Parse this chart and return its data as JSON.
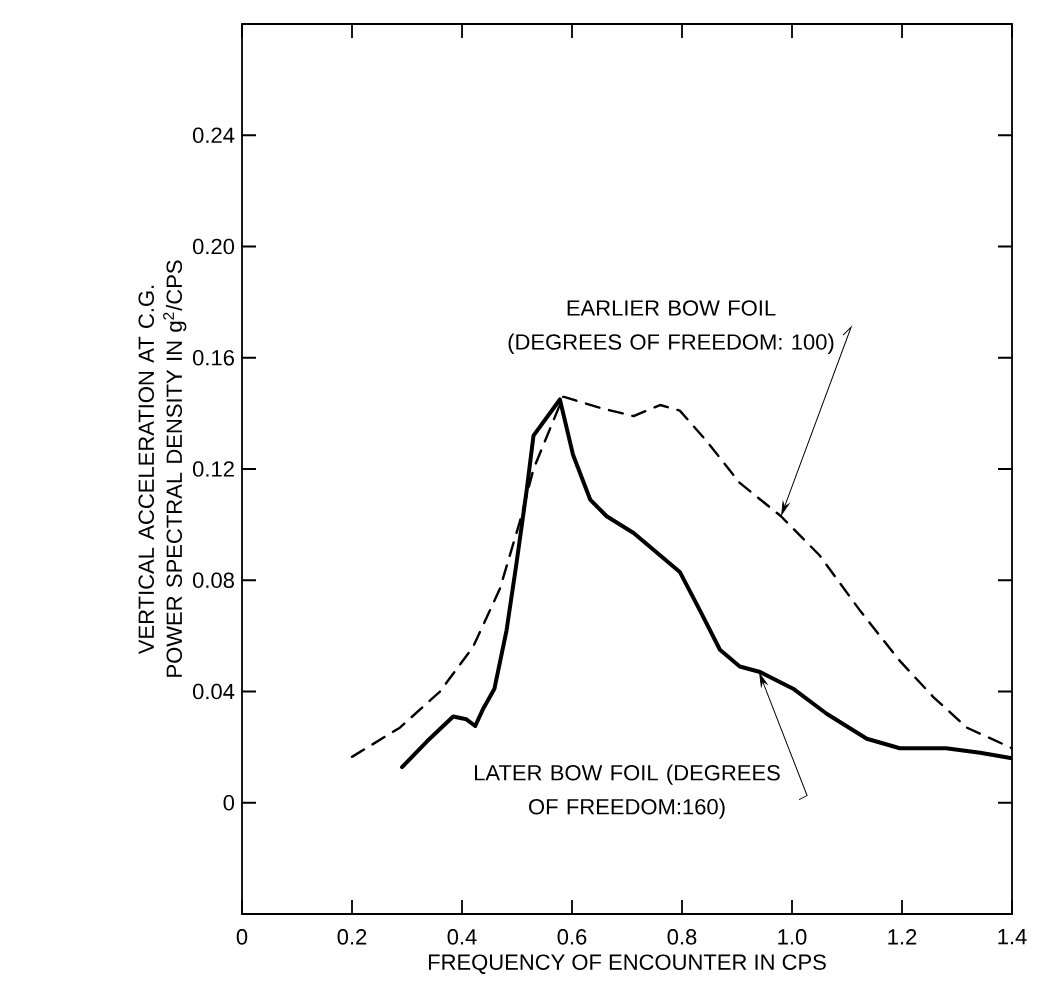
{
  "chart_data": {
    "type": "line",
    "xlabel": "FREQUENCY OF ENCOUNTER IN CPS",
    "ylabel": "VERTICAL ACCELERATION AT C.G. POWER SPECTRAL DENSITY IN g$^{2}$/CPS",
    "xlim": [
      0,
      1.4
    ],
    "ylim": [
      -0.04,
      0.28
    ],
    "xticks": [
      0,
      0.2,
      0.4,
      0.6,
      0.8,
      {
        "value": 1.0,
        "label": "1.0"
      },
      1.2,
      1.4
    ],
    "yticks": [
      0,
      0.04,
      0.08,
      0.12,
      0.16,
      {
        "value": 0.2,
        "label": "0.20"
      },
      0.24
    ],
    "grid": false,
    "marker": "none",
    "series": [
      {
        "color": "#000000",
        "line_style": "dashed",
        "x": [
          0.2,
          0.287,
          0.36,
          0.42,
          0.469,
          0.505,
          0.53,
          0.584,
          0.651,
          0.712,
          0.76,
          0.796,
          0.845,
          0.905,
          0.98,
          1.05,
          1.124,
          1.196,
          1.257,
          1.318,
          1.4
        ],
        "values": [
          0.0165,
          0.027,
          0.04,
          0.056,
          0.077,
          0.101,
          0.12,
          0.146,
          0.142,
          0.139,
          0.143,
          0.141,
          0.13,
          0.115,
          0.103,
          0.089,
          0.069,
          0.051,
          0.038,
          0.027,
          0.0196
        ]
      },
      {
        "color": "#000000",
        "line_style": "solid",
        "x": [
          0.291,
          0.336,
          0.384,
          0.408,
          0.424,
          0.439,
          0.459,
          0.481,
          0.499,
          0.518,
          0.53,
          0.578,
          0.602,
          0.633,
          0.663,
          0.712,
          0.76,
          0.796,
          0.833,
          0.869,
          0.905,
          0.942,
          1.002,
          1.063,
          1.136,
          1.196,
          1.28,
          1.342,
          1.4
        ],
        "values": [
          0.0128,
          0.022,
          0.031,
          0.03,
          0.0276,
          0.034,
          0.041,
          0.062,
          0.086,
          0.113,
          0.132,
          0.145,
          0.125,
          0.109,
          0.103,
          0.097,
          0.089,
          0.083,
          0.069,
          0.055,
          0.049,
          0.047,
          0.041,
          0.032,
          0.023,
          0.0196,
          0.0196,
          0.018,
          0.016
        ]
      }
    ],
    "annotations": [
      {
        "text": "EARLIER BOW FOIL (DEGREES OF FREEDOM: 100)",
        "x": 0.98,
        "y": 0.103
      },
      {
        "text": "LATER BOW FOIL (DEGREES OF FREEDOM:160)",
        "x": 0.94,
        "y": 0.047
      }
    ]
  }
}
